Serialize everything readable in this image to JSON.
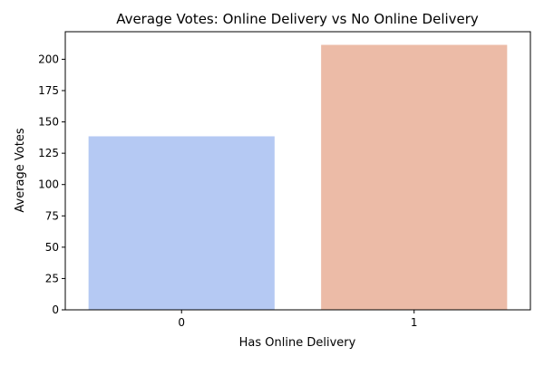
{
  "chart_data": {
    "type": "bar",
    "title": "Average Votes: Online Delivery vs No Online Delivery",
    "xlabel": "Has Online Delivery",
    "ylabel": "Average Votes",
    "categories": [
      "0",
      "1"
    ],
    "values": [
      138.5,
      211.5
    ],
    "colors": [
      "#b5c9f3",
      "#ecbba7"
    ],
    "ylim": [
      0,
      222
    ],
    "yticks": [
      0,
      25,
      50,
      75,
      100,
      125,
      150,
      175,
      200
    ],
    "grid": false,
    "legend": "none"
  }
}
